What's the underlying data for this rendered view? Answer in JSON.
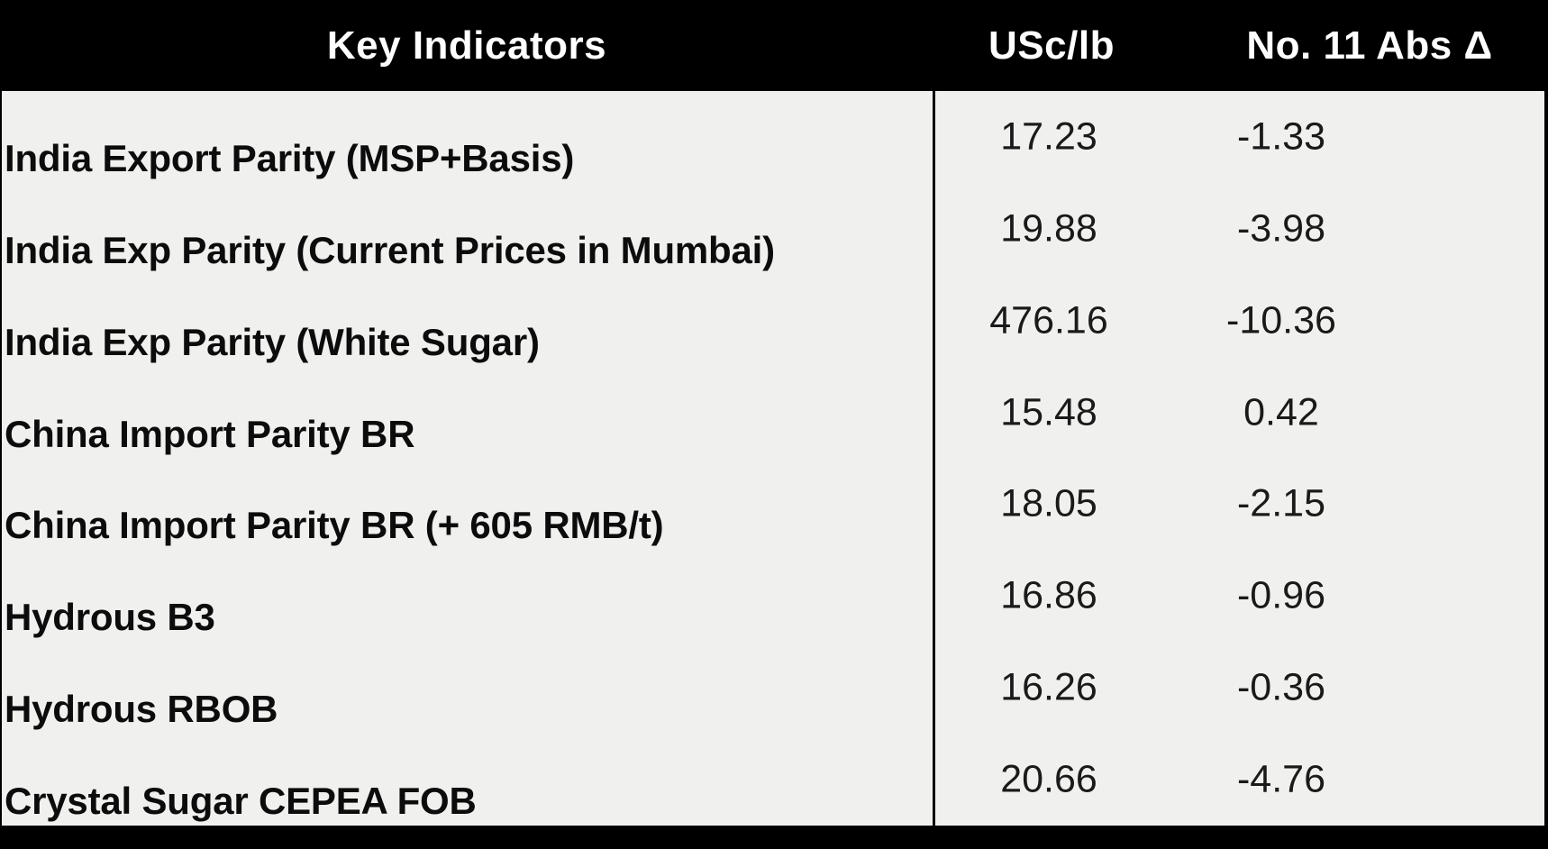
{
  "header": {
    "col_indicators": "Key Indicators",
    "col_usc": "USc/lb",
    "col_delta": "No. 11 Abs Δ"
  },
  "rows": [
    {
      "label": "India Export Parity (MSP+Basis)",
      "usc_lb": "17.23",
      "abs_delta": "-1.33"
    },
    {
      "label": "India Exp Parity (Current Prices in Mumbai)",
      "usc_lb": "19.88",
      "abs_delta": "-3.98"
    },
    {
      "label": "India Exp Parity (White Sugar)",
      "usc_lb": "476.16",
      "abs_delta": "-10.36"
    },
    {
      "label": "China Import Parity BR",
      "usc_lb": "15.48",
      "abs_delta": "0.42"
    },
    {
      "label": "China Import Parity BR (+ 605 RMB/t)",
      "usc_lb": "18.05",
      "abs_delta": "-2.15"
    },
    {
      "label": "Hydrous B3",
      "usc_lb": "16.86",
      "abs_delta": "-0.96"
    },
    {
      "label": "Hydrous RBOB",
      "usc_lb": "16.26",
      "abs_delta": "-0.36"
    },
    {
      "label": "Crystal Sugar CEPEA FOB",
      "usc_lb": "20.66",
      "abs_delta": "-4.76"
    }
  ],
  "colors": {
    "header_bg": "#000000",
    "header_text": "#ffffff",
    "body_bg": "#f0f0ee",
    "divider": "#000000",
    "label_text": "#0c0c0c",
    "value_text": "#1a1a1a",
    "frame_bg": "#000000"
  },
  "chart_data": {
    "type": "table",
    "title": "Key Indicators",
    "columns": [
      "Key Indicators",
      "USc/lb",
      "No. 11 Abs Δ"
    ],
    "rows": [
      [
        "India Export Parity (MSP+Basis)",
        17.23,
        -1.33
      ],
      [
        "India Exp Parity (Current Prices in Mumbai)",
        19.88,
        -3.98
      ],
      [
        "India Exp Parity (White Sugar)",
        476.16,
        -10.36
      ],
      [
        "China Import Parity BR",
        15.48,
        0.42
      ],
      [
        "China Import Parity BR (+ 605 RMB/t)",
        18.05,
        -2.15
      ],
      [
        "Hydrous B3",
        16.86,
        -0.96
      ],
      [
        "Hydrous RBOB",
        16.26,
        -0.36
      ],
      [
        "Crystal Sugar CEPEA FOB",
        20.66,
        -4.76
      ]
    ],
    "layout": {
      "header_style": "black-bar-white-text",
      "value_columns_separated_by_vertical_rule": true,
      "bottom_black_bar": true
    }
  }
}
